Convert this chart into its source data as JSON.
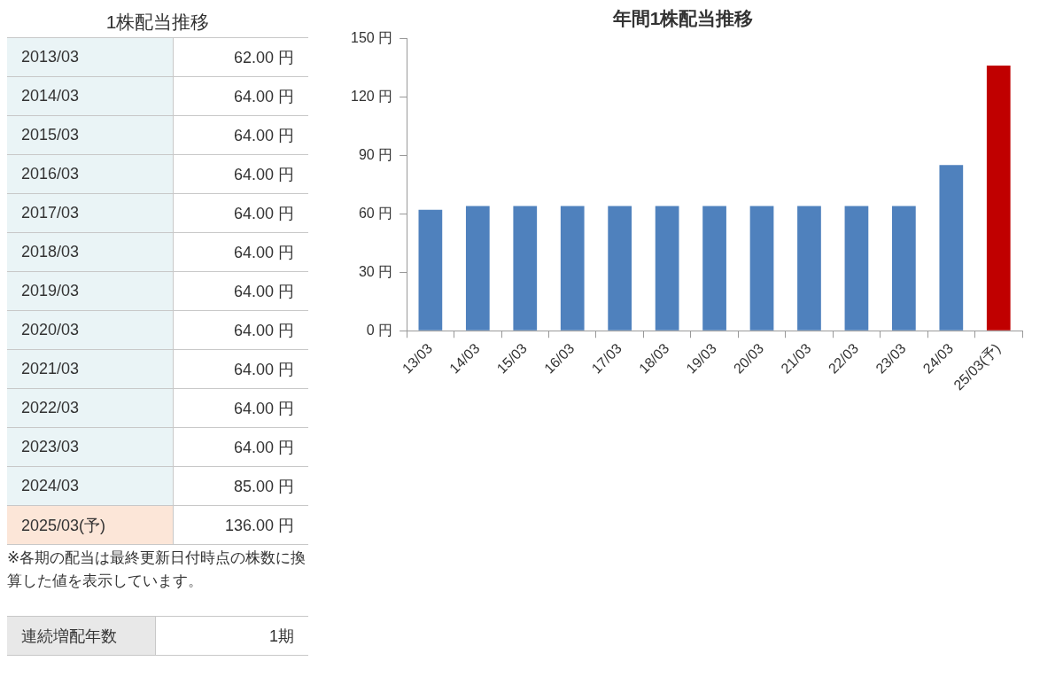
{
  "chart_data": [
    {
      "type": "other",
      "title": "1株配当推移",
      "categories": [
        "2013/03",
        "2014/03",
        "2015/03",
        "2016/03",
        "2017/03",
        "2018/03",
        "2019/03",
        "2020/03",
        "2021/03",
        "2022/03",
        "2023/03",
        "2024/03",
        "2025/03(予)"
      ],
      "value_labels": [
        "62.00 円",
        "64.00 円",
        "64.00 円",
        "64.00 円",
        "64.00 円",
        "64.00 円",
        "64.00 円",
        "64.00 円",
        "64.00 円",
        "64.00 円",
        "64.00 円",
        "85.00 円",
        "136.00 円"
      ],
      "colors": [
        "#eaf4f6",
        "#eaf4f6",
        "#eaf4f6",
        "#eaf4f6",
        "#eaf4f6",
        "#eaf4f6",
        "#eaf4f6",
        "#eaf4f6",
        "#eaf4f6",
        "#eaf4f6",
        "#eaf4f6",
        "#eaf4f6",
        "#fce6d8"
      ],
      "annotations": [
        "※各期の配当は最終更新日付時点の株数に換算した値を表示しています。",
        "連続増配年数",
        "1期"
      ]
    },
    {
      "type": "bar",
      "title": "年間1株配当推移",
      "categories": [
        "13/03",
        "14/03",
        "15/03",
        "16/03",
        "17/03",
        "18/03",
        "19/03",
        "20/03",
        "21/03",
        "22/03",
        "23/03",
        "24/03",
        "25/03(予)"
      ],
      "values": [
        62,
        64,
        64,
        64,
        64,
        64,
        64,
        64,
        64,
        64,
        64,
        85,
        136
      ],
      "colors": [
        "#4f81bd",
        "#4f81bd",
        "#4f81bd",
        "#4f81bd",
        "#4f81bd",
        "#4f81bd",
        "#4f81bd",
        "#4f81bd",
        "#4f81bd",
        "#4f81bd",
        "#4f81bd",
        "#4f81bd",
        "#c00000"
      ],
      "ylim": [
        0,
        150
      ],
      "yticks": [
        {
          "value": 0,
          "label": "0 円"
        },
        {
          "value": 30,
          "label": "30 円"
        },
        {
          "value": 60,
          "label": "60 円"
        },
        {
          "value": 90,
          "label": "90 円"
        },
        {
          "value": 120,
          "label": "120 円"
        },
        {
          "value": 150,
          "label": "150 円"
        }
      ]
    }
  ]
}
